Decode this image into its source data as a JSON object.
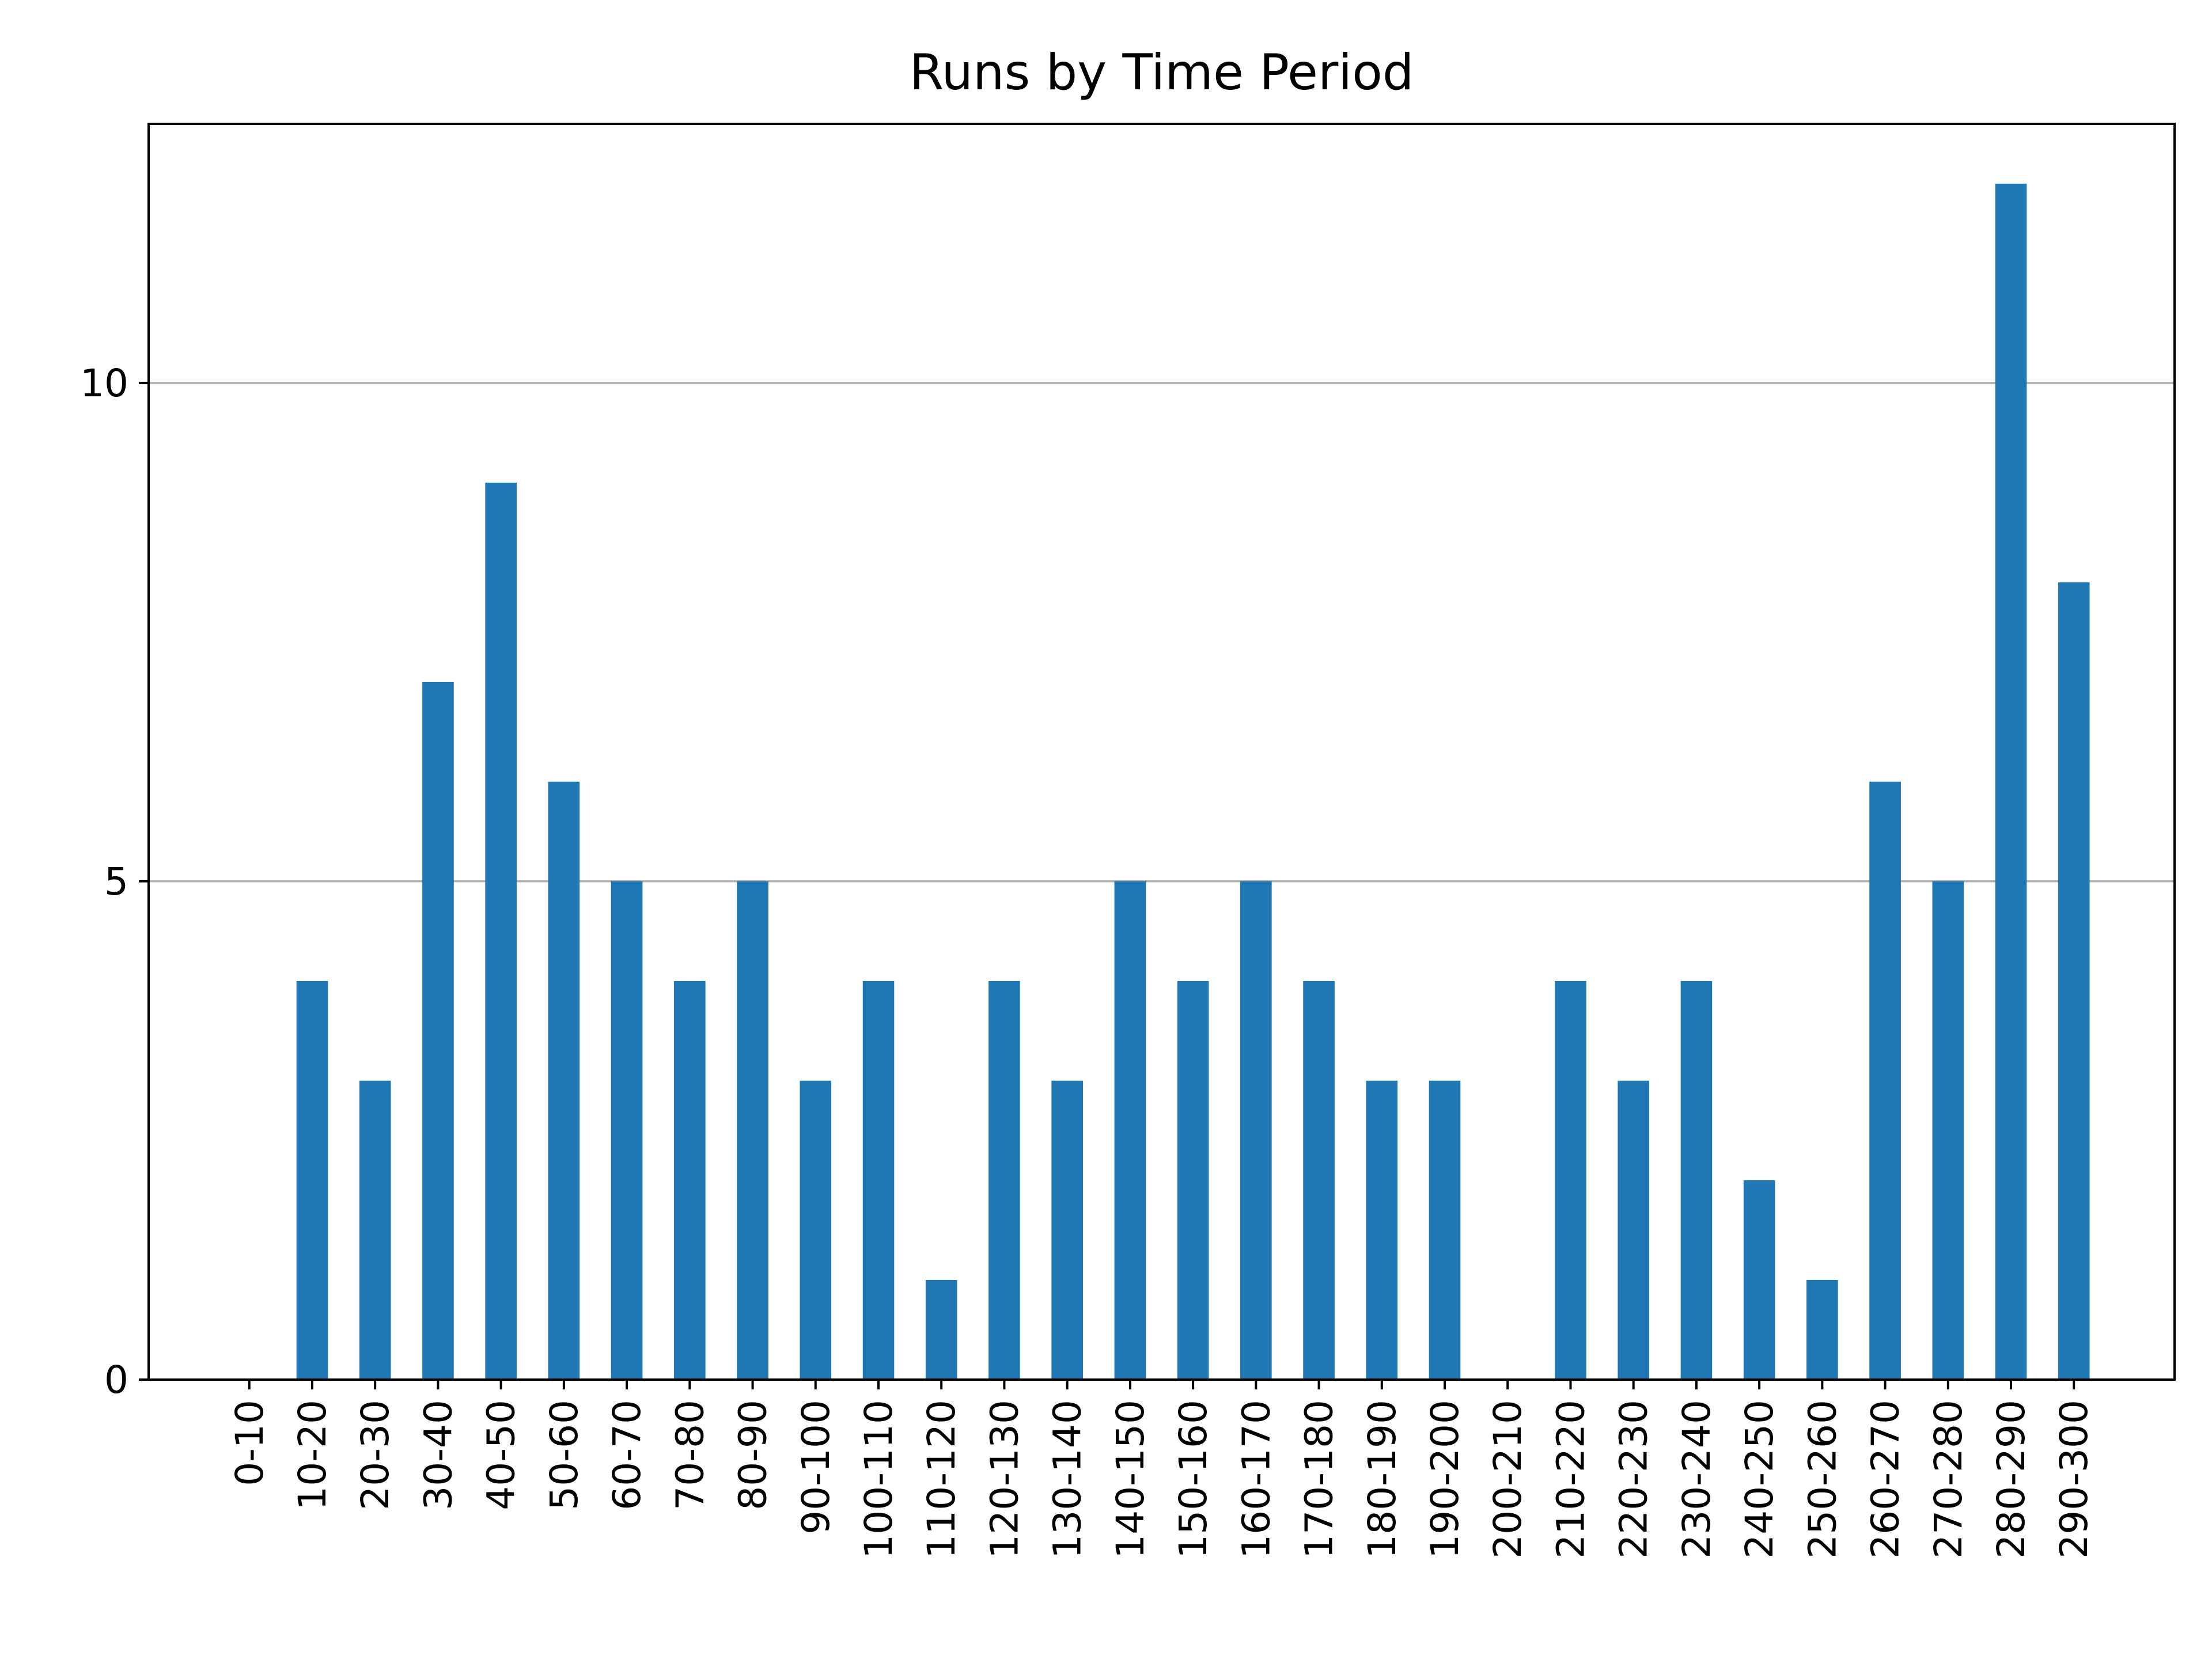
{
  "chart_data": {
    "type": "bar",
    "title": "Runs by Time Period",
    "xlabel": "",
    "ylabel": "",
    "categories": [
      "0-10",
      "10-20",
      "20-30",
      "30-40",
      "40-50",
      "50-60",
      "60-70",
      "70-80",
      "80-90",
      "90-100",
      "100-110",
      "110-120",
      "120-130",
      "130-140",
      "140-150",
      "150-160",
      "160-170",
      "170-180",
      "180-190",
      "190-200",
      "200-210",
      "210-220",
      "220-230",
      "230-240",
      "240-250",
      "250-260",
      "260-270",
      "270-280",
      "280-290",
      "290-300"
    ],
    "values": [
      0,
      4,
      3,
      7,
      9,
      6,
      5,
      4,
      5,
      3,
      4,
      1,
      4,
      3,
      5,
      4,
      5,
      4,
      3,
      3,
      0,
      4,
      3,
      4,
      2,
      1,
      6,
      5,
      12,
      8
    ],
    "ylim": [
      0,
      12.6
    ],
    "yticks": [
      0,
      5,
      10
    ],
    "grid": "y",
    "legend": "none",
    "bar_color": "#1f77b4",
    "grid_color": "#b0b0b0"
  }
}
